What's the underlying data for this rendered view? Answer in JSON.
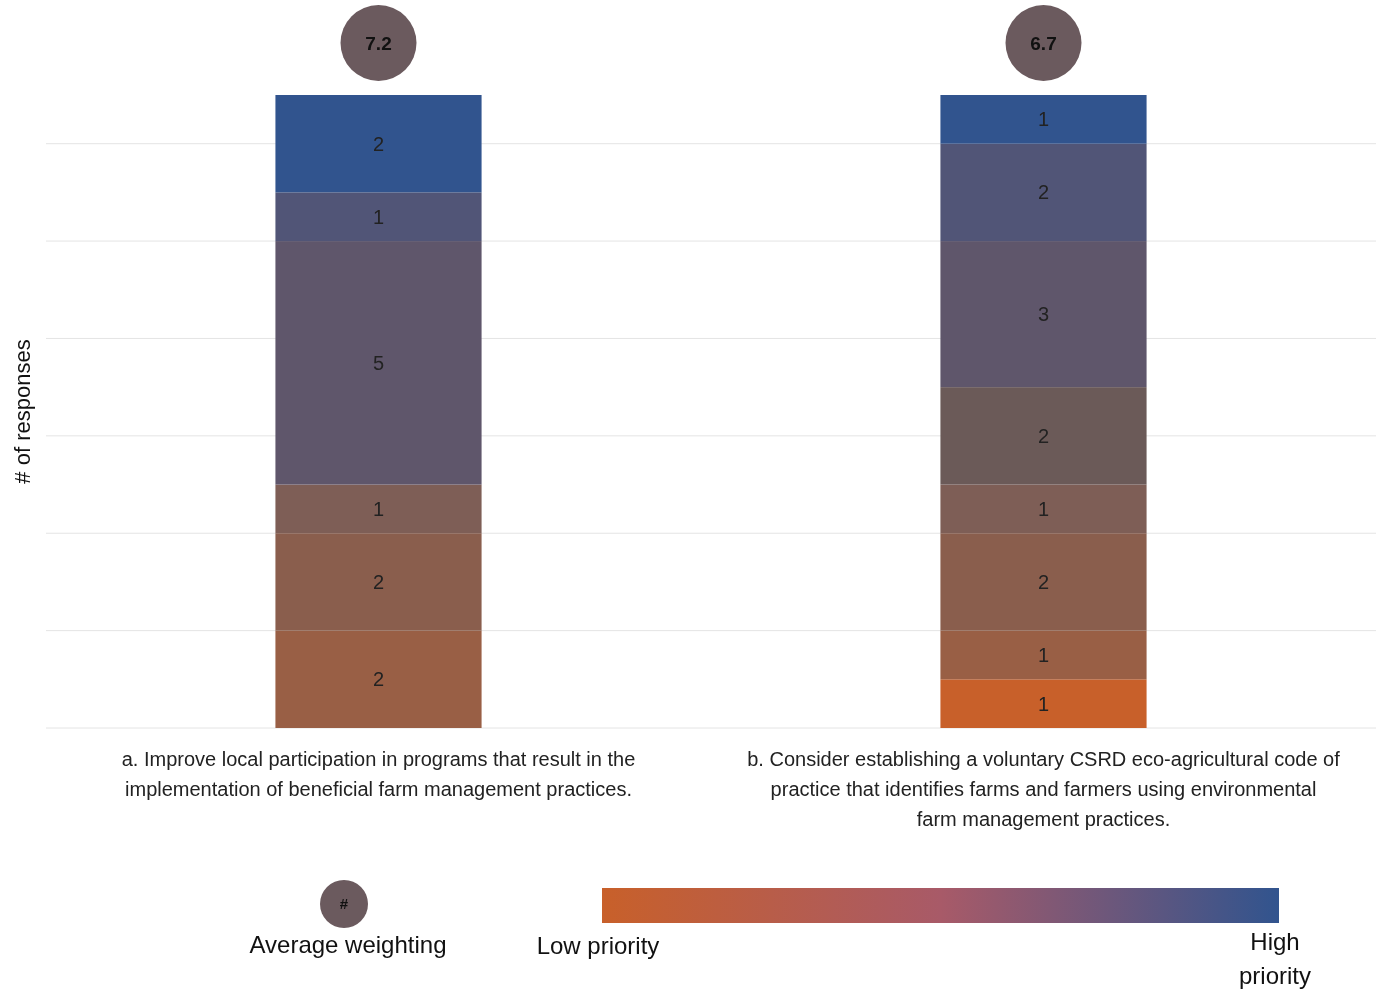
{
  "chart_data": {
    "type": "bar",
    "stacked": true,
    "ylabel": "# of responses",
    "categories": [
      "a. Improve local participation in programs that result in the implementation of beneficial farm management practices.",
      "b. Consider establishing a voluntary CSRD eco-agricultural code of practice that identifies farms and farmers using environmental farm management practices."
    ],
    "series": [
      {
        "color": "#c8602a",
        "values": [
          null,
          1
        ]
      },
      {
        "color": "#995f45",
        "values": [
          2,
          1
        ]
      },
      {
        "color": "#8a5e4d",
        "values": [
          2,
          2
        ]
      },
      {
        "color": "#7e5e56",
        "values": [
          1,
          1
        ]
      },
      {
        "color": "#6b5a58",
        "values": [
          null,
          2
        ]
      },
      {
        "color": "#5f566b",
        "values": [
          5,
          3
        ]
      },
      {
        "color": "#515577",
        "values": [
          1,
          2
        ]
      },
      {
        "color": "#31548e",
        "values": [
          2,
          1
        ]
      }
    ],
    "ylim": [
      0,
      13
    ],
    "yticks": [
      {
        "value": 0,
        "label": null
      },
      {
        "value": 2,
        "label": null
      },
      {
        "value": 4,
        "label": null
      },
      {
        "value": 6,
        "label": null
      },
      {
        "value": 8,
        "label": null
      },
      {
        "value": 10,
        "label": null
      },
      {
        "value": 12,
        "label": null
      }
    ],
    "tick_labels": "x",
    "grid": "y",
    "data_labels": true,
    "annotations": [
      "7.2",
      "6.7",
      "#",
      "Average weighting",
      "Low priority",
      "High priority"
    ]
  }
}
